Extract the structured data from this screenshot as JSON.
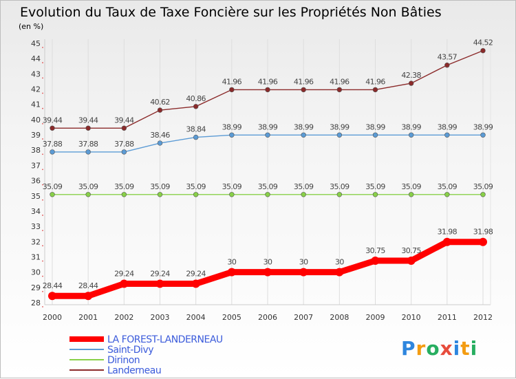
{
  "chart_data": {
    "type": "line",
    "title": "Evolution du Taux de Taxe Foncière sur les Propriétés Non Bâties",
    "subtitle": "(en %)",
    "categories": [
      "2000",
      "2001",
      "2002",
      "2003",
      "2004",
      "2005",
      "2006",
      "2007",
      "2008",
      "2009",
      "2010",
      "2011",
      "2012"
    ],
    "ylim": [
      28,
      45
    ],
    "yticks": [
      "28",
      "29",
      "30",
      "31",
      "32",
      "33",
      "34",
      "35",
      "36",
      "37",
      "38",
      "39",
      "40",
      "41",
      "42",
      "43",
      "44",
      "45"
    ],
    "grid": true,
    "legend_position": "bottom-left",
    "series": [
      {
        "name": "LA FOREST-LANDERNEAU",
        "color": "#ff0000",
        "values": [
          28.44,
          28.44,
          29.24,
          29.24,
          29.24,
          30,
          30,
          30,
          30,
          30.75,
          30.75,
          31.98,
          31.98
        ],
        "labels": [
          "28.44",
          "28.44",
          "29.24",
          "29.24",
          "29.24",
          "30",
          "30",
          "30",
          "30",
          "30.75",
          "30.75",
          "31.98",
          "31.98"
        ]
      },
      {
        "name": "Saint-Divy",
        "color": "#5b9bd5",
        "values": [
          37.88,
          37.88,
          37.88,
          38.46,
          38.84,
          38.99,
          38.99,
          38.99,
          38.99,
          38.99,
          38.99,
          38.99,
          38.99
        ],
        "labels": [
          "37.88",
          "37.88",
          "37.88",
          "38.46",
          "38.84",
          "38.99",
          "38.99",
          "38.99",
          "38.99",
          "38.99",
          "38.99",
          "38.99",
          "38.99"
        ]
      },
      {
        "name": "Dirinon",
        "color": "#88d048",
        "values": [
          35.09,
          35.09,
          35.09,
          35.09,
          35.09,
          35.09,
          35.09,
          35.09,
          35.09,
          35.09,
          35.09,
          35.09,
          35.09
        ],
        "labels": [
          "35.09",
          "35.09",
          "35.09",
          "35.09",
          "35.09",
          "35.09",
          "35.09",
          "35.09",
          "35.09",
          "35.09",
          "35.09",
          "35.09",
          "35.09"
        ]
      },
      {
        "name": "Landerneau",
        "color": "#8b2a2a",
        "values": [
          39.44,
          39.44,
          39.44,
          40.62,
          40.86,
          41.96,
          41.96,
          41.96,
          41.96,
          41.96,
          42.38,
          43.57,
          44.52
        ],
        "labels": [
          "39.44",
          "39.44",
          "39.44",
          "40.62",
          "40.86",
          "41.96",
          "41.96",
          "41.96",
          "41.96",
          "41.96",
          "42.38",
          "43.57",
          "44.52"
        ]
      }
    ]
  },
  "logo": {
    "text": "Proxiti",
    "letter_colors": [
      "#2e86de",
      "#f39c12",
      "#27ae60",
      "#e74c3c",
      "#2e86de",
      "#f39c12",
      "#27ae60"
    ]
  },
  "colors": {
    "title": "#4d78c2",
    "axis_text": "#333333",
    "grid": "#dddddd",
    "legend_text": "#3b5bdb"
  }
}
